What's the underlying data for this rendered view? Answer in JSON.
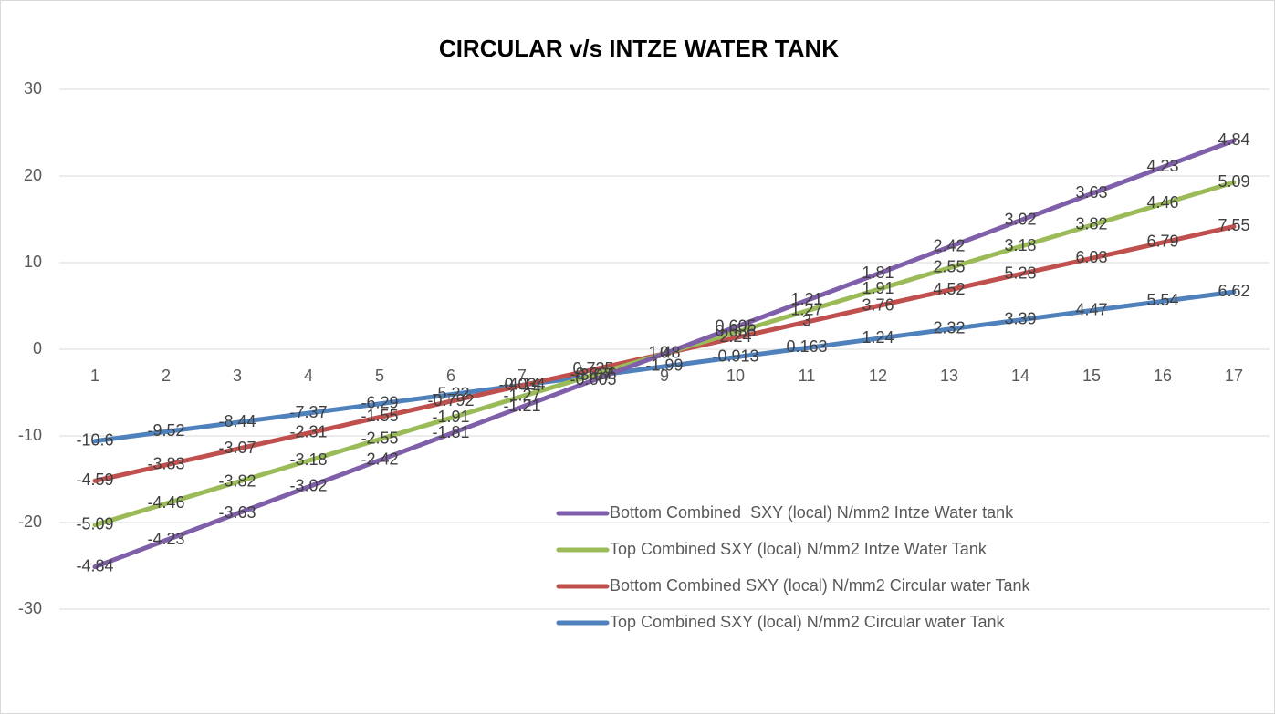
{
  "chart_data": {
    "type": "line",
    "stacked": true,
    "title": "CIRCULAR v/s INTZE WATER TANK",
    "categories": [
      "1",
      "2",
      "3",
      "4",
      "5",
      "6",
      "7",
      "8",
      "9",
      "10",
      "11",
      "12",
      "13",
      "14",
      "15",
      "16",
      "17"
    ],
    "series": [
      {
        "name": "Bottom Combined  SXY (local) N/mm2 Intze Water tank",
        "color": "#7f5fa9",
        "values": [
          -4.84,
          -4.23,
          -3.63,
          -3.02,
          -2.42,
          -1.81,
          -1.21,
          -0.605,
          0,
          0.605,
          1.21,
          1.81,
          2.42,
          3.02,
          3.63,
          4.23,
          4.84
        ]
      },
      {
        "name": "Top Combined SXY (local) N/mm2 Intze Water Tank",
        "color": "#9bbb59",
        "values": [
          -5.09,
          -4.46,
          -3.82,
          -3.18,
          -2.55,
          -1.91,
          -1.27,
          -0.636,
          0,
          0.636,
          1.27,
          1.91,
          2.55,
          3.18,
          3.82,
          4.46,
          5.09
        ]
      },
      {
        "name": "Bottom Combined SXY (local) N/mm2 Circular water Tank",
        "color": "#c0504d",
        "values": [
          -4.59,
          -3.83,
          -3.07,
          -2.31,
          -1.55,
          -0.792,
          -0.034,
          0.725,
          1.48,
          2.24,
          3,
          3.76,
          4.52,
          5.28,
          6.03,
          6.79,
          7.55
        ]
      },
      {
        "name": "Top Combined SXY (local) N/mm2 Circular water Tank",
        "color": "#4f81bd",
        "values": [
          -10.6,
          -9.52,
          -8.44,
          -7.37,
          -6.29,
          -5.22,
          -4.14,
          -3.07,
          -1.99,
          -0.913,
          0.163,
          1.24,
          2.32,
          3.39,
          4.47,
          5.54,
          6.62
        ]
      }
    ],
    "ylim": [
      -30,
      30
    ],
    "yticks": [
      -30,
      -20,
      -10,
      0,
      10,
      20,
      30
    ],
    "grid": true
  }
}
